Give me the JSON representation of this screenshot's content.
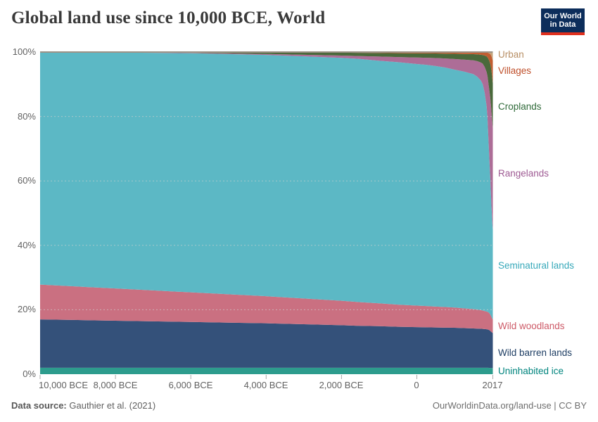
{
  "header": {
    "title": "Global land use since 10,000 BCE, World"
  },
  "logo": {
    "line1": "Our World",
    "line2": "in Data",
    "bg_color": "#0c2d5b",
    "bar_color": "#e0301e"
  },
  "footer": {
    "source_label": "Data source:",
    "source_value": "Gauthier et al. (2021)",
    "citation": "OurWorldinData.org/land-use | CC BY"
  },
  "chart_data": {
    "type": "area",
    "stacked": true,
    "unit": "% of global land",
    "ylim": [
      0,
      100
    ],
    "x_range": [
      -10000,
      2017
    ],
    "grid": "dashed-horizontal",
    "legend_position": "right",
    "x": [
      -10000,
      -9000,
      -8000,
      -7000,
      -6000,
      -5000,
      -4000,
      -3000,
      -2000,
      -1500,
      -1000,
      -500,
      0,
      250,
      500,
      750,
      1000,
      1250,
      1500,
      1600,
      1700,
      1750,
      1800,
      1850,
      1875,
      1900,
      1925,
      1950,
      1960,
      1970,
      1980,
      1990,
      2000,
      2010,
      2017
    ],
    "series": [
      {
        "name": "Uninhabited ice",
        "color": "#2d9c8d",
        "label_color": "#00847e",
        "values": [
          2,
          2,
          2,
          2,
          2,
          2,
          2,
          2,
          2,
          2,
          2,
          2,
          2,
          2,
          2,
          2,
          2,
          2,
          2,
          2,
          2,
          2,
          2,
          2,
          2,
          2,
          1.95,
          1.95,
          1.9,
          1.9,
          1.9,
          1.9,
          1.9,
          1.9,
          1.9
        ]
      },
      {
        "name": "Wild barren lands",
        "color": "#34517a",
        "label_color": "#1d3d63",
        "values": [
          15,
          14.8,
          14.6,
          14.4,
          14.2,
          14,
          13.8,
          13.5,
          13.2,
          13,
          12.9,
          12.7,
          12.6,
          12.55,
          12.5,
          12.45,
          12.4,
          12.3,
          12.2,
          12.15,
          12.1,
          12.05,
          12,
          11.95,
          11.9,
          11.8,
          11.7,
          11.5,
          11.4,
          11.3,
          11.2,
          11.1,
          11,
          10.95,
          10.9
        ]
      },
      {
        "name": "Wild woodlands",
        "color": "#ca7081",
        "label_color": "#cd5a67",
        "values": [
          10.8,
          10.4,
          10,
          9.6,
          9.2,
          8.8,
          8.4,
          8,
          7.6,
          7.35,
          7.1,
          6.9,
          6.7,
          6.6,
          6.5,
          6.4,
          6.3,
          6.15,
          6,
          5.9,
          5.8,
          5.7,
          5.6,
          5.5,
          5.45,
          5.4,
          5.3,
          5.1,
          5,
          4.9,
          4.7,
          4.5,
          4.4,
          4.3,
          4.2
        ]
      },
      {
        "name": "Seminatural lands",
        "color": "#5cb8c5",
        "label_color": "#38a9ba",
        "values": [
          72.2,
          72.75,
          73.23,
          73.75,
          74.25,
          74.58,
          74.9,
          75.15,
          75.4,
          75.5,
          75.3,
          75.25,
          75,
          74.88,
          74.65,
          74.35,
          73.85,
          73.5,
          72.94,
          72.33,
          71.25,
          70.23,
          67.8,
          63.9,
          60.25,
          54.2,
          47.6,
          42.2,
          39.7,
          37,
          34.5,
          32.4,
          30.3,
          28.75,
          27.9
        ]
      },
      {
        "name": "Rangelands",
        "color": "#ad6d97",
        "label_color": "#9e5a93",
        "values": [
          0,
          0,
          0.05,
          0.07,
          0.1,
          0.2,
          0.3,
          0.5,
          0.7,
          0.9,
          1.3,
          1.6,
          2,
          2.2,
          2.5,
          2.8,
          3.3,
          3.7,
          4.3,
          4.8,
          5.6,
          6.4,
          8,
          10.5,
          13,
          17,
          21.5,
          25,
          26.5,
          28,
          29.2,
          30.2,
          31,
          31.4,
          31.5
        ]
      },
      {
        "name": "Croplands",
        "color": "#4a693b",
        "label_color": "#2f6a39",
        "values": [
          0,
          0.05,
          0.1,
          0.15,
          0.2,
          0.35,
          0.5,
          0.7,
          0.9,
          1,
          1.1,
          1.2,
          1.3,
          1.35,
          1.4,
          1.5,
          1.6,
          1.75,
          1.9,
          2.1,
          2.4,
          2.7,
          3.5,
          4.8,
          5.8,
          7.5,
          9.2,
          10.6,
          11.3,
          12,
          12.7,
          13.2,
          13.6,
          13.9,
          14
        ]
      },
      {
        "name": "Villages",
        "color": "#c15e31",
        "label_color": "#bf4e29",
        "values": [
          0,
          0,
          0.02,
          0.03,
          0.05,
          0.07,
          0.1,
          0.15,
          0.2,
          0.25,
          0.3,
          0.35,
          0.4,
          0.42,
          0.45,
          0.5,
          0.55,
          0.6,
          0.65,
          0.7,
          0.8,
          0.85,
          1,
          1.2,
          1.4,
          1.8,
          2.3,
          3,
          3.4,
          3.9,
          4.5,
          5.1,
          5.8,
          6.5,
          7
        ]
      },
      {
        "name": "Urban",
        "color": "#c4a47c",
        "label_color": "#b78e64",
        "values": [
          0,
          0,
          0,
          0,
          0,
          0,
          0,
          0,
          0,
          0,
          0,
          0,
          0,
          0,
          0,
          0,
          0,
          0,
          0.01,
          0.02,
          0.05,
          0.07,
          0.1,
          0.15,
          0.2,
          0.3,
          0.45,
          0.65,
          0.8,
          1,
          1.3,
          1.6,
          2,
          2.3,
          2.6
        ]
      }
    ],
    "x_ticks": [
      {
        "year": -10000,
        "label": "10,000 BCE"
      },
      {
        "year": -8000,
        "label": "8,000 BCE"
      },
      {
        "year": -6000,
        "label": "6,000 BCE"
      },
      {
        "year": -4000,
        "label": "4,000 BCE"
      },
      {
        "year": -2000,
        "label": "2,000 BCE"
      },
      {
        "year": 0,
        "label": "0"
      },
      {
        "year": 2017,
        "label": "2017"
      }
    ],
    "y_ticks": [
      {
        "value": 0,
        "label": "0%"
      },
      {
        "value": 20,
        "label": "20%"
      },
      {
        "value": 40,
        "label": "40%"
      },
      {
        "value": 60,
        "label": "60%"
      },
      {
        "value": 80,
        "label": "80%"
      },
      {
        "value": 100,
        "label": "100%"
      }
    ]
  }
}
